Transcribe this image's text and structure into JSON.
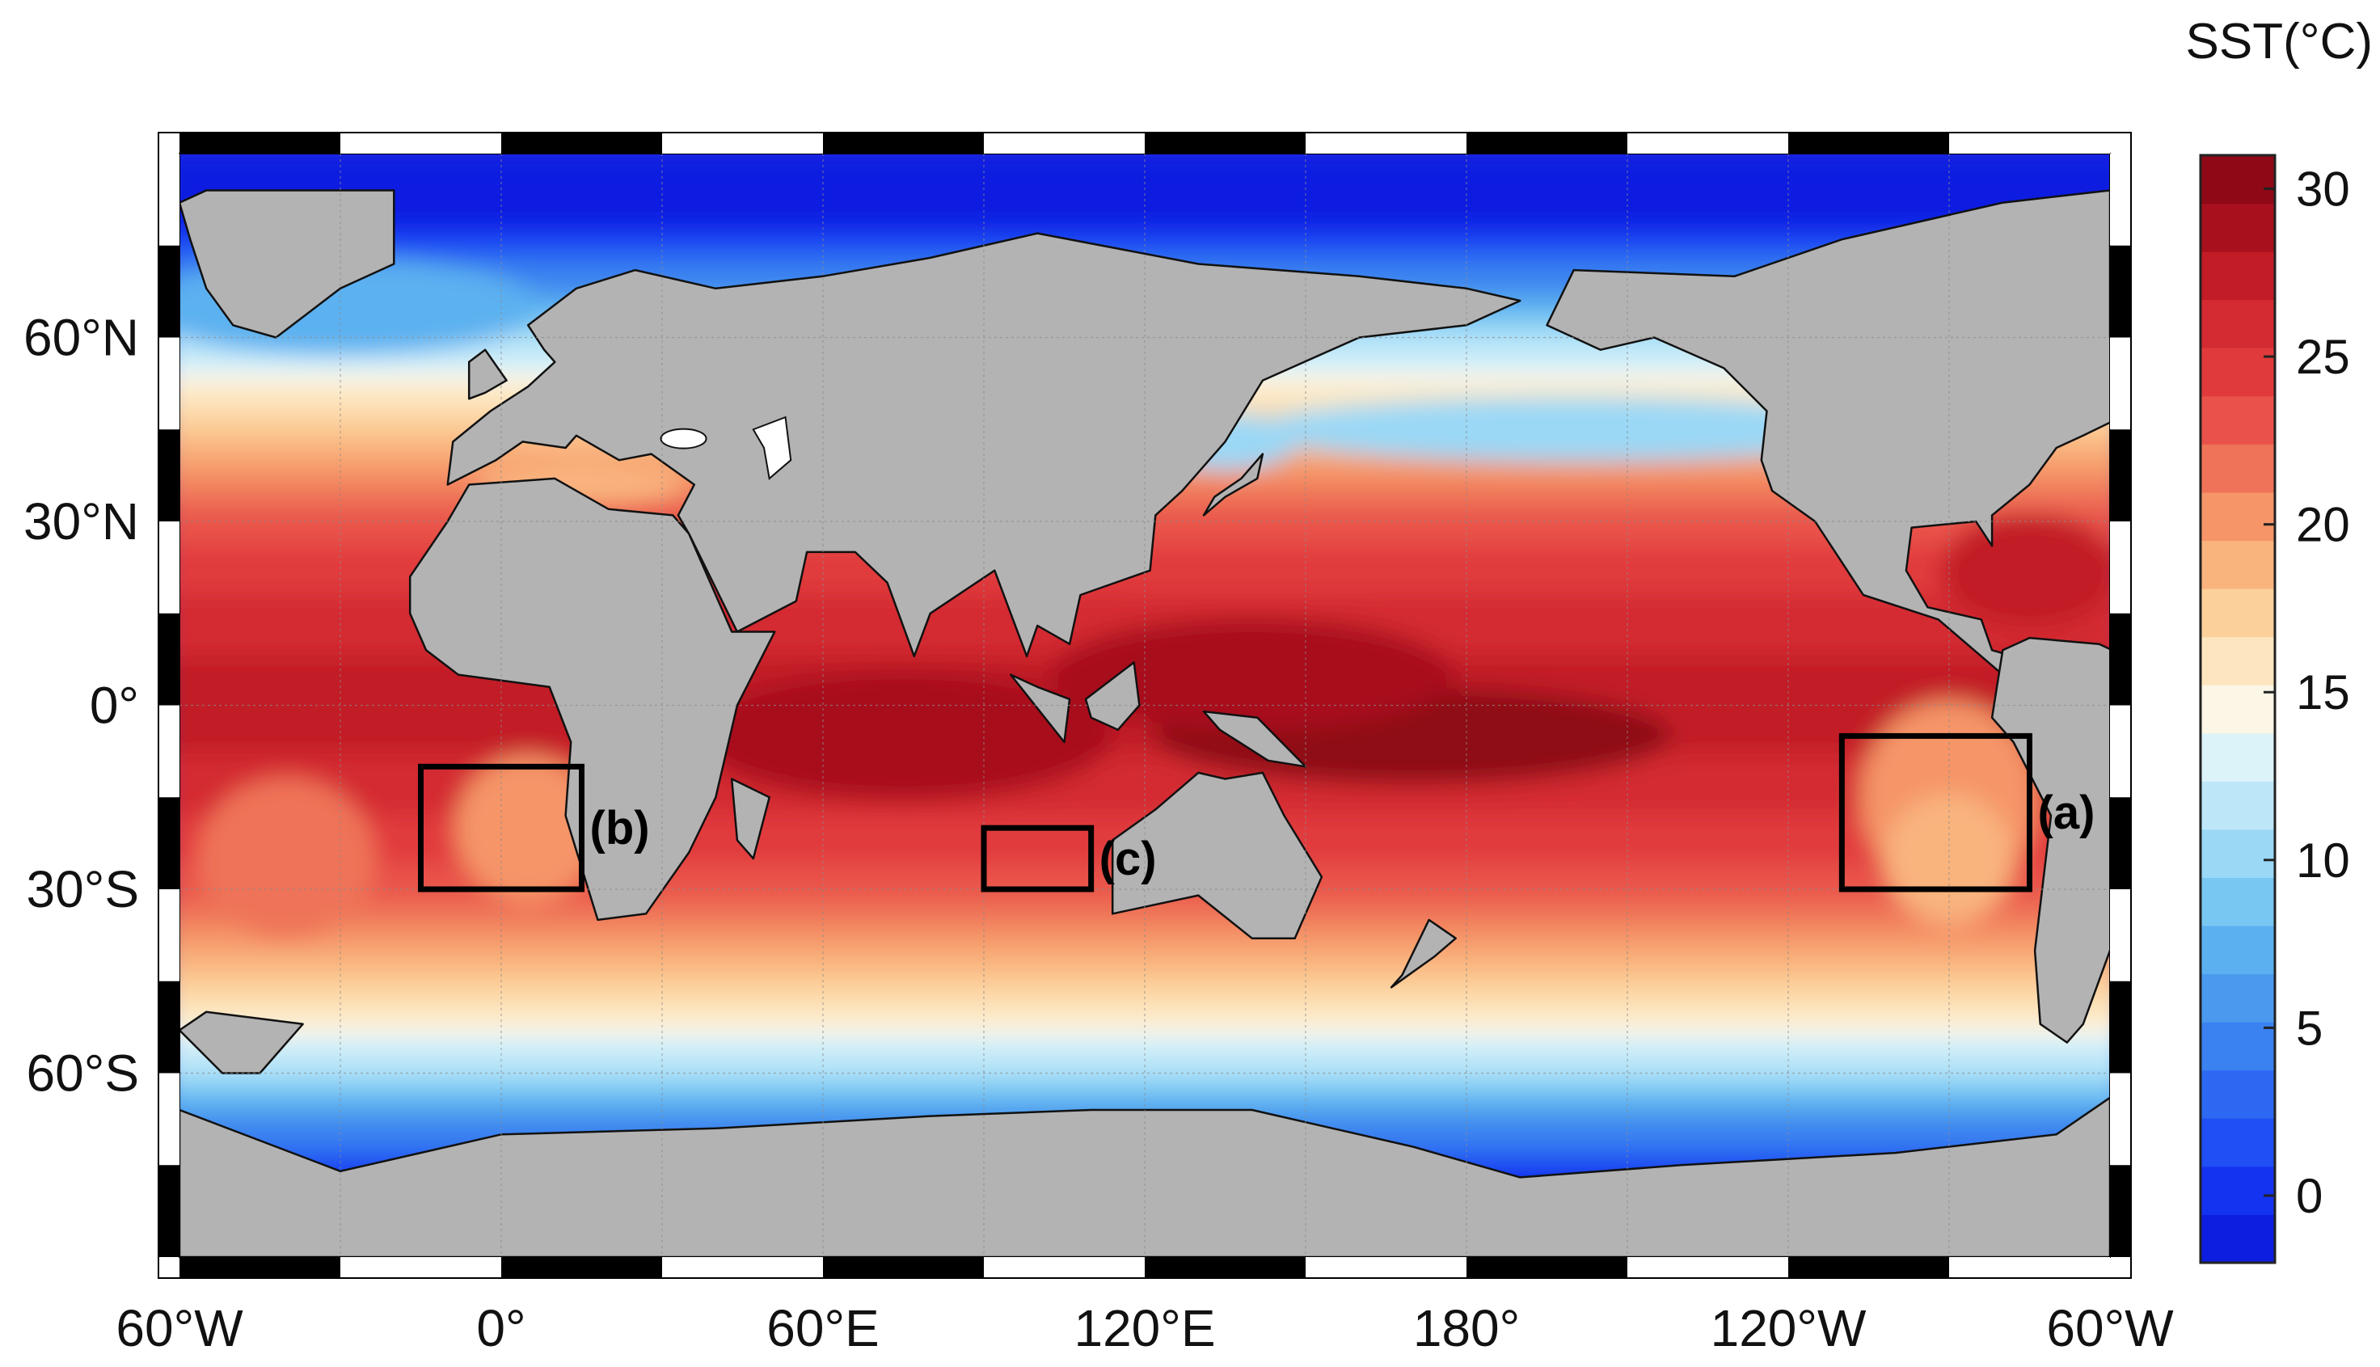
{
  "map": {
    "projection": "equirectangular",
    "lon_range": [
      -60,
      300
    ],
    "lat_range": [
      -90,
      90
    ],
    "land_color": "#b3b3b3",
    "grid": true,
    "grid_color": "#8c8c8c",
    "x_ticks": [
      {
        "lon": -60,
        "label": "60°W"
      },
      {
        "lon": 0,
        "label": "0°"
      },
      {
        "lon": 60,
        "label": "60°E"
      },
      {
        "lon": 120,
        "label": "120°E"
      },
      {
        "lon": 180,
        "label": "180°"
      },
      {
        "lon": 240,
        "label": "120°W"
      },
      {
        "lon": 300,
        "label": "60°W"
      }
    ],
    "y_ticks": [
      {
        "lat": 60,
        "label": "60°N"
      },
      {
        "lat": 30,
        "label": "30°N"
      },
      {
        "lat": 0,
        "label": "0°"
      },
      {
        "lat": -30,
        "label": "30°S"
      },
      {
        "lat": -60,
        "label": "60°S"
      }
    ],
    "regions": [
      {
        "label": "(a)",
        "lon": [
          250,
          285
        ],
        "lat": [
          -30,
          -5
        ],
        "label_side": "right"
      },
      {
        "label": "(b)",
        "lon": [
          -15,
          15
        ],
        "lat": [
          -30,
          -10
        ],
        "label_side": "right"
      },
      {
        "label": "(c)",
        "lon": [
          90,
          110
        ],
        "lat": [
          -30,
          -20
        ],
        "label_side": "right"
      }
    ]
  },
  "colorbar": {
    "title": "SST(°C)",
    "vmin": -2,
    "vmax": 31,
    "ticks": [
      0,
      5,
      10,
      15,
      20,
      25,
      30
    ],
    "tick_labels": [
      "0",
      "5",
      "10",
      "15",
      "20",
      "25",
      "30"
    ],
    "colors_low_to_high": [
      "#0d1ee0",
      "#1433f0",
      "#1f4ff5",
      "#2c68f2",
      "#3a82f0",
      "#4a99ee",
      "#5bb1f0",
      "#78c7f3",
      "#9ad8f6",
      "#bde7f8",
      "#ddf3fa",
      "#fbf6e6",
      "#fde6bf",
      "#fcd09b",
      "#f9b47e",
      "#f59568",
      "#ef7358",
      "#e9524a",
      "#e13a3c",
      "#d42a31",
      "#c21c27",
      "#a8101d",
      "#8e0816"
    ]
  }
}
